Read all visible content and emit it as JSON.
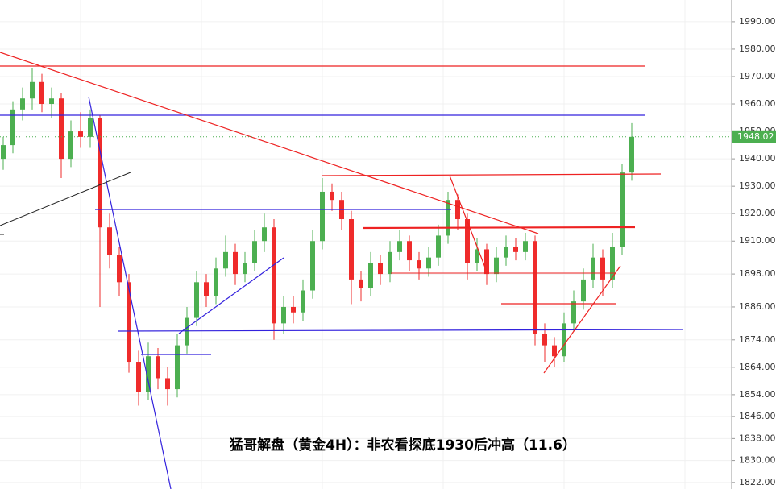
{
  "chart_data": {
    "type": "candlestick",
    "title": "猛哥解盘（黄金4H）：非农看探底1930后冲高（11.6）",
    "up_color": "#4caf50",
    "down_color": "#ef2b2b",
    "ylim": [
      1819.6,
      1997.9
    ],
    "yticks": [
      {
        "value": 1822,
        "label": "1822.00"
      },
      {
        "value": 1830,
        "label": "1830.00"
      },
      {
        "value": 1838,
        "label": "1838.00"
      },
      {
        "value": 1846,
        "label": "1846.00"
      },
      {
        "value": 1854,
        "label": "1854.00"
      },
      {
        "value": 1864,
        "label": "1864.00"
      },
      {
        "value": 1874,
        "label": "1874.00"
      },
      {
        "value": 1886,
        "label": "1886.00"
      },
      {
        "value": 1898,
        "label": "1898.00"
      },
      {
        "value": 1910,
        "label": "1910.00"
      },
      {
        "value": 1920,
        "label": "1920.00"
      },
      {
        "value": 1930,
        "label": "1930.00"
      },
      {
        "value": 1940,
        "label": "1940.00"
      },
      {
        "value": 1950,
        "label": "1950.00"
      },
      {
        "value": 1960,
        "label": "1960.00"
      },
      {
        "value": 1970,
        "label": "1970.00"
      },
      {
        "value": 1980,
        "label": "1980.00"
      },
      {
        "value": 1990,
        "label": "1990.00"
      }
    ],
    "grid": true,
    "last_price": 1948.02,
    "last_price_color": "#4caf50",
    "ohlc": [
      [
        1940,
        1948,
        1936,
        1945
      ],
      [
        1945,
        1961,
        1942,
        1958
      ],
      [
        1958,
        1966,
        1954,
        1962
      ],
      [
        1962,
        1973,
        1958,
        1968
      ],
      [
        1968,
        1971,
        1957,
        1960
      ],
      [
        1960,
        1966,
        1955,
        1962
      ],
      [
        1962,
        1964,
        1933,
        1940
      ],
      [
        1940,
        1954,
        1937,
        1950
      ],
      [
        1950,
        1957,
        1944,
        1948
      ],
      [
        1948,
        1958,
        1944,
        1955
      ],
      [
        1955,
        1956,
        1886,
        1915
      ],
      [
        1915,
        1920,
        1900,
        1905
      ],
      [
        1905,
        1908,
        1890,
        1895
      ],
      [
        1895,
        1898,
        1862,
        1866
      ],
      [
        1866,
        1870,
        1850,
        1855
      ],
      [
        1855,
        1873,
        1852,
        1868
      ],
      [
        1868,
        1871,
        1856,
        1860
      ],
      [
        1860,
        1864,
        1850,
        1856
      ],
      [
        1856,
        1876,
        1853,
        1872
      ],
      [
        1872,
        1886,
        1869,
        1882
      ],
      [
        1882,
        1899,
        1879,
        1895
      ],
      [
        1895,
        1898,
        1886,
        1890
      ],
      [
        1890,
        1904,
        1887,
        1900
      ],
      [
        1900,
        1912,
        1897,
        1906
      ],
      [
        1906,
        1909,
        1894,
        1898
      ],
      [
        1898,
        1906,
        1895,
        1902
      ],
      [
        1902,
        1914,
        1899,
        1910
      ],
      [
        1910,
        1920,
        1906,
        1915
      ],
      [
        1915,
        1918,
        1874,
        1880
      ],
      [
        1880,
        1890,
        1876,
        1886
      ],
      [
        1886,
        1890,
        1880,
        1884
      ],
      [
        1884,
        1896,
        1881,
        1892
      ],
      [
        1892,
        1914,
        1889,
        1910
      ],
      [
        1910,
        1933,
        1907,
        1928
      ],
      [
        1928,
        1931,
        1921,
        1925
      ],
      [
        1925,
        1928,
        1914,
        1918
      ],
      [
        1918,
        1921,
        1887,
        1896
      ],
      [
        1896,
        1899,
        1888,
        1893
      ],
      [
        1893,
        1906,
        1890,
        1902
      ],
      [
        1902,
        1905,
        1894,
        1898
      ],
      [
        1898,
        1910,
        1895,
        1906
      ],
      [
        1906,
        1914,
        1903,
        1910
      ],
      [
        1910,
        1912,
        1899,
        1903
      ],
      [
        1903,
        1906,
        1896,
        1900
      ],
      [
        1900,
        1908,
        1897,
        1904
      ],
      [
        1904,
        1916,
        1901,
        1912
      ],
      [
        1912,
        1928,
        1909,
        1925
      ],
      [
        1925,
        1927,
        1914,
        1918
      ],
      [
        1918,
        1920,
        1896,
        1902
      ],
      [
        1902,
        1911,
        1899,
        1907
      ],
      [
        1907,
        1909,
        1894,
        1898
      ],
      [
        1898,
        1908,
        1895,
        1904
      ],
      [
        1904,
        1912,
        1901,
        1908
      ],
      [
        1908,
        1911,
        1903,
        1906
      ],
      [
        1906,
        1913,
        1903,
        1910
      ],
      [
        1910,
        1912,
        1872,
        1876
      ],
      [
        1876,
        1880,
        1866,
        1872
      ],
      [
        1872,
        1875,
        1864,
        1868
      ],
      [
        1868,
        1884,
        1866,
        1880
      ],
      [
        1880,
        1892,
        1877,
        1888
      ],
      [
        1888,
        1900,
        1885,
        1896
      ],
      [
        1896,
        1909,
        1893,
        1904
      ],
      [
        1904,
        1907,
        1890,
        1896
      ],
      [
        1896,
        1913,
        1893,
        1908
      ],
      [
        1908,
        1938,
        1905,
        1935
      ],
      [
        1935,
        1953,
        1932,
        1948.02
      ]
    ]
  }
}
